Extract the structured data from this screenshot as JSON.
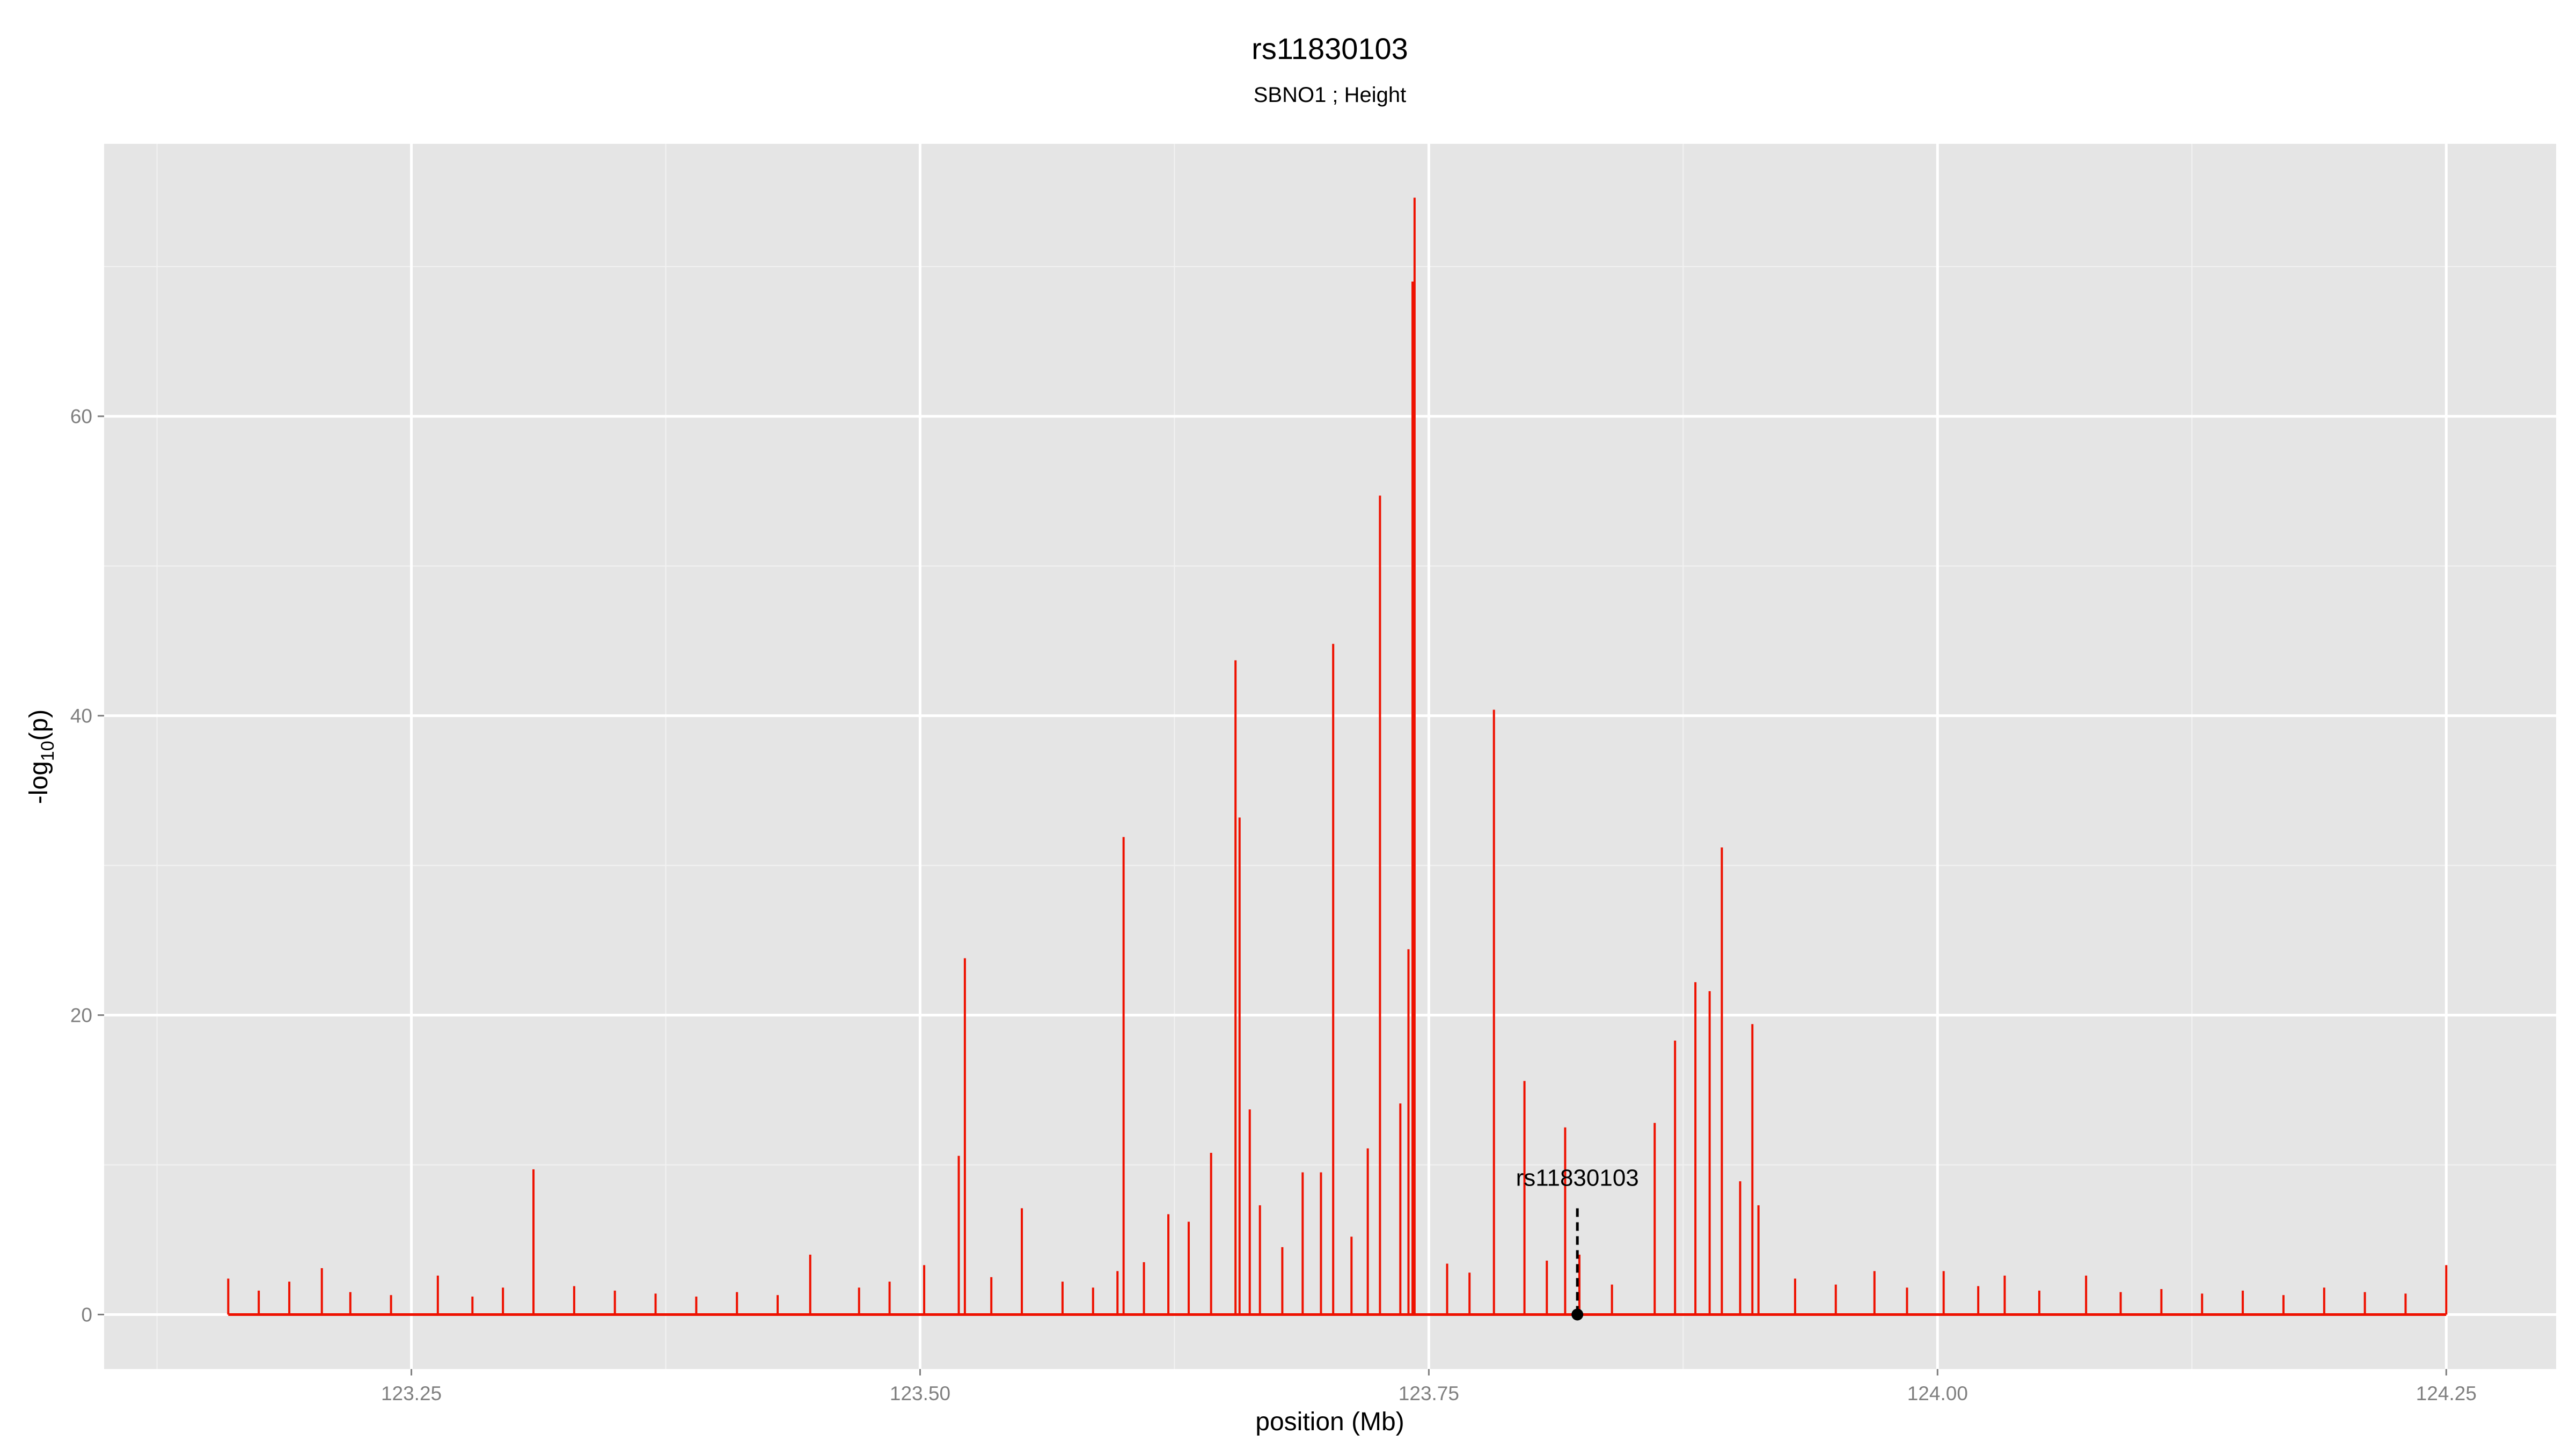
{
  "chart_data": {
    "type": "spike",
    "title": "rs11830103",
    "subtitle": "SBNO1 ; Height",
    "x_label": "position (Mb)",
    "y_label": {
      "prefix": "-log",
      "sub": "10",
      "suffix": "(p)"
    },
    "color": "#ee1100",
    "grid": true,
    "xlim": [
      123.099,
      124.304
    ],
    "ylim": [
      -3.64,
      78.2
    ],
    "xticks": [
      123.25,
      {
        "value": 123.5,
        "label": "123.50"
      },
      123.75,
      {
        "value": 124,
        "label": "124.00"
      },
      124.25
    ],
    "yticks": [
      0,
      20,
      40,
      60
    ],
    "x": [
      123.16,
      123.175,
      123.19,
      123.206,
      123.22,
      123.24,
      123.263,
      123.28,
      123.295,
      123.31,
      123.33,
      123.35,
      123.37,
      123.39,
      123.41,
      123.43,
      123.446,
      123.47,
      123.485,
      123.502,
      123.519,
      123.522,
      123.535,
      123.55,
      123.57,
      123.585,
      123.597,
      123.6,
      123.61,
      123.622,
      123.632,
      123.643,
      123.655,
      123.657,
      123.662,
      123.667,
      123.678,
      123.688,
      123.697,
      123.703,
      123.712,
      123.72,
      123.726,
      123.736,
      123.74,
      123.742,
      123.743,
      123.759,
      123.77,
      123.782,
      123.797,
      123.808,
      123.817,
      123.824,
      123.84,
      123.861,
      123.871,
      123.881,
      123.888,
      123.894,
      123.903,
      123.909,
      123.912,
      123.93,
      123.95,
      123.969,
      123.985,
      124.003,
      124.02,
      124.033,
      124.05,
      124.073,
      124.09,
      124.11,
      124.13,
      124.15,
      124.17,
      124.19,
      124.21,
      124.23,
      124.25
    ],
    "values": [
      2.4,
      1.6,
      2.2,
      3.1,
      1.5,
      1.3,
      2.6,
      1.2,
      1.8,
      9.7,
      1.9,
      1.6,
      1.4,
      1.2,
      1.5,
      1.3,
      4.0,
      1.8,
      2.2,
      3.3,
      10.6,
      23.8,
      2.5,
      7.1,
      2.2,
      1.8,
      2.9,
      31.9,
      3.5,
      6.7,
      6.2,
      10.8,
      43.7,
      33.2,
      13.7,
      7.3,
      4.5,
      9.5,
      9.5,
      44.8,
      5.2,
      11.1,
      54.7,
      14.1,
      24.4,
      69,
      74.6,
      3.4,
      2.8,
      40.4,
      15.6,
      3.6,
      12.5,
      4.0,
      2.0,
      12.8,
      18.3,
      22.2,
      21.6,
      31.2,
      8.9,
      19.4,
      7.3,
      2.4,
      2.0,
      2.9,
      1.8,
      2.9,
      1.9,
      2.6,
      1.6,
      2.6,
      1.5,
      1.7,
      1.4,
      1.6,
      1.3,
      1.8,
      1.5,
      1.4,
      3.3
    ],
    "annotation": {
      "text": "rs11830103",
      "x": 123.823,
      "y": 0
    }
  }
}
